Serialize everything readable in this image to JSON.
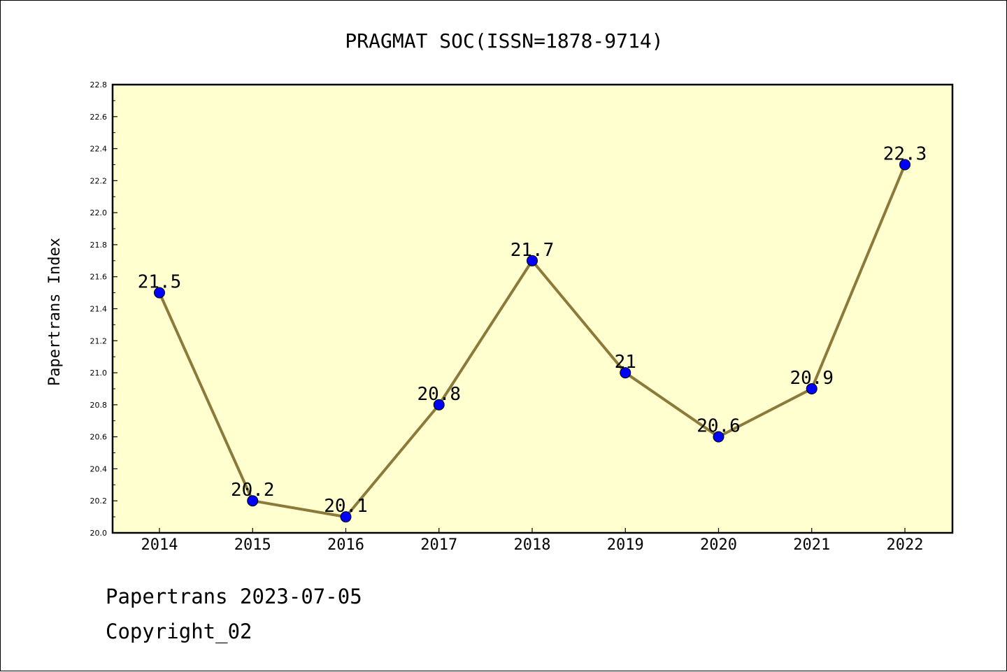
{
  "chart_data": {
    "type": "line",
    "title": "PRAGMAT SOC(ISSN=1878-9714)",
    "xlabel": "",
    "ylabel": "Papertrans Index",
    "categories": [
      "2014",
      "2015",
      "2016",
      "2017",
      "2018",
      "2019",
      "2020",
      "2021",
      "2022"
    ],
    "series": [
      {
        "values": [
          21.5,
          20.2,
          20.1,
          20.8,
          21.7,
          21.0,
          20.6,
          20.9,
          22.3
        ],
        "labels": [
          "21.5",
          "20.2",
          "20.1",
          "20.8",
          "21.7",
          "21",
          "20.6",
          "20.9",
          "22.3"
        ]
      }
    ],
    "ylim": [
      20.0,
      22.8
    ],
    "yticks": [
      "20.0",
      "20.2",
      "20.4",
      "20.6",
      "20.8",
      "21.0",
      "21.2",
      "21.4",
      "21.6",
      "21.8",
      "22.0",
      "22.2",
      "22.4",
      "22.6",
      "22.8"
    ],
    "grid": false,
    "legend": "none",
    "colors": {
      "plot_background": "#ffffd0",
      "line": "#8b7a3a",
      "marker": "#0000ff",
      "axes": "#000000"
    }
  },
  "footer": {
    "date_line": "Papertrans 2023-07-05",
    "copyright": "Copyright_02"
  }
}
